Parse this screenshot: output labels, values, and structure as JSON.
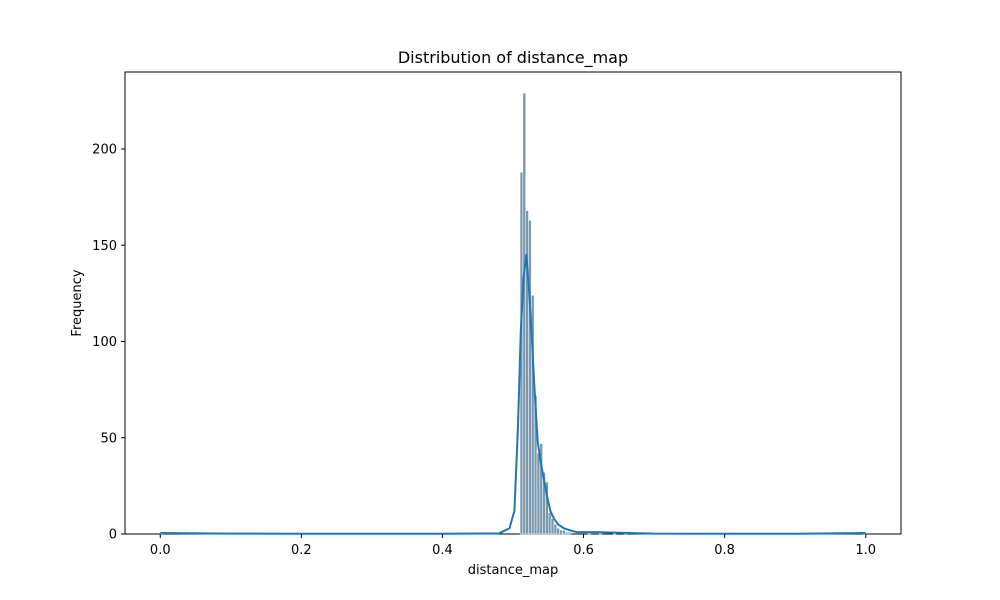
{
  "chart_data": {
    "type": "bar",
    "title": "Distribution of distance_map",
    "xlabel": "distance_map",
    "ylabel": "Frequency",
    "xlim": [
      -0.05,
      1.05
    ],
    "ylim": [
      0,
      240
    ],
    "xticks": [
      0.0,
      0.2,
      0.4,
      0.6,
      0.8,
      1.0
    ],
    "xtick_labels": [
      "0.0",
      "0.2",
      "0.4",
      "0.6",
      "0.8",
      "1.0"
    ],
    "yticks": [
      0,
      50,
      100,
      150,
      200
    ],
    "ytick_labels": [
      "0",
      "50",
      "100",
      "150",
      "200"
    ],
    "grid": false,
    "legend": "none",
    "colors": {
      "bar_fill": "#7a97ad",
      "bar_edge": "#ffffff",
      "kde_line": "#1f77b4"
    },
    "histogram": {
      "bin_width": 0.004,
      "bins": [
        {
          "x": 0.0,
          "count": 1
        },
        {
          "x": 0.51,
          "count": 188
        },
        {
          "x": 0.514,
          "count": 229
        },
        {
          "x": 0.518,
          "count": 168
        },
        {
          "x": 0.522,
          "count": 163
        },
        {
          "x": 0.526,
          "count": 124
        },
        {
          "x": 0.53,
          "count": 72
        },
        {
          "x": 0.534,
          "count": 42
        },
        {
          "x": 0.538,
          "count": 47
        },
        {
          "x": 0.542,
          "count": 32
        },
        {
          "x": 0.546,
          "count": 27
        },
        {
          "x": 0.55,
          "count": 11
        },
        {
          "x": 0.554,
          "count": 8
        },
        {
          "x": 0.558,
          "count": 5
        },
        {
          "x": 0.562,
          "count": 3
        },
        {
          "x": 0.566,
          "count": 2
        },
        {
          "x": 0.57,
          "count": 2
        },
        {
          "x": 0.574,
          "count": 1
        },
        {
          "x": 0.578,
          "count": 1
        },
        {
          "x": 0.606,
          "count": 1
        },
        {
          "x": 0.622,
          "count": 1
        },
        {
          "x": 0.642,
          "count": 1
        },
        {
          "x": 0.658,
          "count": 1
        },
        {
          "x": 0.996,
          "count": 1
        }
      ]
    },
    "kde": {
      "x": [
        0.0,
        0.1,
        0.2,
        0.3,
        0.4,
        0.48,
        0.495,
        0.502,
        0.507,
        0.511,
        0.515,
        0.519,
        0.523,
        0.527,
        0.531,
        0.535,
        0.539,
        0.543,
        0.548,
        0.553,
        0.558,
        0.564,
        0.572,
        0.58,
        0.59,
        0.6,
        0.62,
        0.64,
        0.66,
        0.7,
        0.8,
        0.9,
        1.0
      ],
      "y": [
        0.5,
        0.2,
        0.1,
        0.1,
        0.1,
        0.3,
        3,
        12,
        55,
        105,
        133,
        145,
        125,
        100,
        72,
        48,
        38,
        30,
        20,
        12,
        8,
        5,
        3,
        2,
        1,
        1,
        1,
        0.8,
        0.6,
        0.2,
        0.1,
        0.1,
        0.5
      ]
    }
  }
}
